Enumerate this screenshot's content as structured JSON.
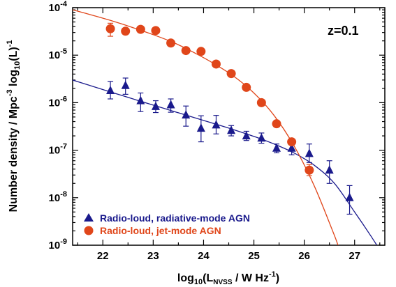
{
  "chart_data": {
    "type": "scatter",
    "x_scale": "linear",
    "y_scale": "log",
    "xlim": [
      21.4,
      27.6
    ],
    "ylim": [
      1e-09,
      0.0001
    ],
    "x_ticks": [
      22,
      23,
      24,
      25,
      26,
      27
    ],
    "x_tick_labels": [
      "22",
      "23",
      "24",
      "25",
      "26",
      "27"
    ],
    "y_tick_labels": [
      {
        "base": "10",
        "exp": "-4"
      },
      {
        "base": "10",
        "exp": "-5"
      },
      {
        "base": "10",
        "exp": "-6"
      },
      {
        "base": "10",
        "exp": "-7"
      },
      {
        "base": "10",
        "exp": "-8"
      },
      {
        "base": "10",
        "exp": "-9"
      }
    ],
    "xlabel": {
      "pre": "log",
      "sub1": "10",
      "mid": "(L",
      "sub2": "NVSS",
      "post": " / W Hz",
      "sup": "-1",
      "end": ")"
    },
    "ylabel": {
      "pre": "Number density / Mpc",
      "sup1": "-3",
      "mid": " log",
      "sub": "10",
      "mid2": "(L)",
      "sup2": "-1"
    },
    "annotation": "z=0.1",
    "legend_position": "bottom-left",
    "series": [
      {
        "name": "Radio-loud, radiative-mode AGN",
        "color": "#1a1a8c",
        "marker": "triangle",
        "points": [
          {
            "x": 22.15,
            "y": 1.8e-06,
            "lo": 1.2e-06,
            "hi": 2.8e-06
          },
          {
            "x": 22.45,
            "y": 2.3e-06,
            "lo": 1.5e-06,
            "hi": 3.3e-06
          },
          {
            "x": 22.75,
            "y": 1.1e-06,
            "lo": 6.5e-07,
            "hi": 1.6e-06
          },
          {
            "x": 23.05,
            "y": 8.3e-07,
            "lo": 6.2e-07,
            "hi": 1.1e-06
          },
          {
            "x": 23.35,
            "y": 9e-07,
            "lo": 6.3e-07,
            "hi": 1.2e-06
          },
          {
            "x": 23.65,
            "y": 5.5e-07,
            "lo": 3.2e-07,
            "hi": 8.5e-07
          },
          {
            "x": 23.95,
            "y": 2.9e-07,
            "lo": 1.5e-07,
            "hi": 5.3e-07
          },
          {
            "x": 24.25,
            "y": 3.4e-07,
            "lo": 2.2e-07,
            "hi": 5.4e-07
          },
          {
            "x": 24.55,
            "y": 2.6e-07,
            "lo": 2e-07,
            "hi": 3.3e-07
          },
          {
            "x": 24.85,
            "y": 2e-07,
            "lo": 1.6e-07,
            "hi": 2.5e-07
          },
          {
            "x": 25.15,
            "y": 1.8e-07,
            "lo": 1.4e-07,
            "hi": 2.3e-07
          },
          {
            "x": 25.45,
            "y": 1.1e-07,
            "lo": 8.8e-08,
            "hi": 1.35e-07
          },
          {
            "x": 25.75,
            "y": 1.1e-07,
            "lo": 8e-08,
            "hi": 1.5e-07
          },
          {
            "x": 26.1,
            "y": 8.5e-08,
            "lo": 5.5e-08,
            "hi": 1.35e-07
          },
          {
            "x": 26.5,
            "y": 3.8e-08,
            "lo": 2e-08,
            "hi": 6e-08
          },
          {
            "x": 26.9,
            "y": 1e-08,
            "lo": 4.5e-09,
            "hi": 1.8e-08
          }
        ],
        "curve": {
          "x": [
            21.4,
            21.8,
            22.2,
            22.6,
            23.0,
            23.4,
            23.8,
            24.2,
            24.6,
            25.0,
            25.4,
            25.8,
            26.2,
            26.6,
            27.0,
            27.3,
            27.5
          ],
          "y": [
            3e-06,
            2.2e-06,
            1.62e-06,
            1.2e-06,
            8.9e-07,
            6.6e-07,
            4.9e-07,
            3.65e-07,
            2.7e-07,
            1.95e-07,
            1.35e-07,
            8.7e-08,
            4.8e-08,
            2e-08,
            5e-09,
            1.7e-09,
            8e-10
          ]
        }
      },
      {
        "name": "Radio-loud, jet-mode AGN",
        "color": "#e0461a",
        "marker": "circle",
        "points": [
          {
            "x": 22.15,
            "y": 3.6e-05,
            "lo": 2.5e-05,
            "hi": 4.7e-05
          },
          {
            "x": 22.45,
            "y": 3.2e-05
          },
          {
            "x": 22.75,
            "y": 3.5e-05
          },
          {
            "x": 23.05,
            "y": 3.3e-05
          },
          {
            "x": 23.35,
            "y": 1.8e-05
          },
          {
            "x": 23.65,
            "y": 1.25e-05
          },
          {
            "x": 23.95,
            "y": 1.2e-05
          },
          {
            "x": 24.25,
            "y": 6.5e-06
          },
          {
            "x": 24.55,
            "y": 4.1e-06
          },
          {
            "x": 24.85,
            "y": 2.1e-06
          },
          {
            "x": 25.15,
            "y": 1e-06
          },
          {
            "x": 25.45,
            "y": 3.6e-07
          },
          {
            "x": 25.75,
            "y": 1.5e-07
          },
          {
            "x": 26.1,
            "y": 3.8e-08,
            "lo": 2.9e-08,
            "hi": 5e-08
          }
        ],
        "curve": {
          "x": [
            21.4,
            21.8,
            22.2,
            22.6,
            23.0,
            23.4,
            23.8,
            24.2,
            24.6,
            25.0,
            25.4,
            25.8,
            26.2,
            26.6,
            27.0,
            27.17
          ],
          "y": [
            9e-05,
            6.9e-05,
            5.2e-05,
            3.8e-05,
            2.7e-05,
            1.85e-05,
            1.15e-05,
            6.7e-06,
            3.6e-06,
            1.6e-06,
            5.4e-07,
            1.22e-07,
            1.75e-08,
            1.6e-09,
            1.35e-10,
            1e-09
          ]
        }
      }
    ]
  }
}
